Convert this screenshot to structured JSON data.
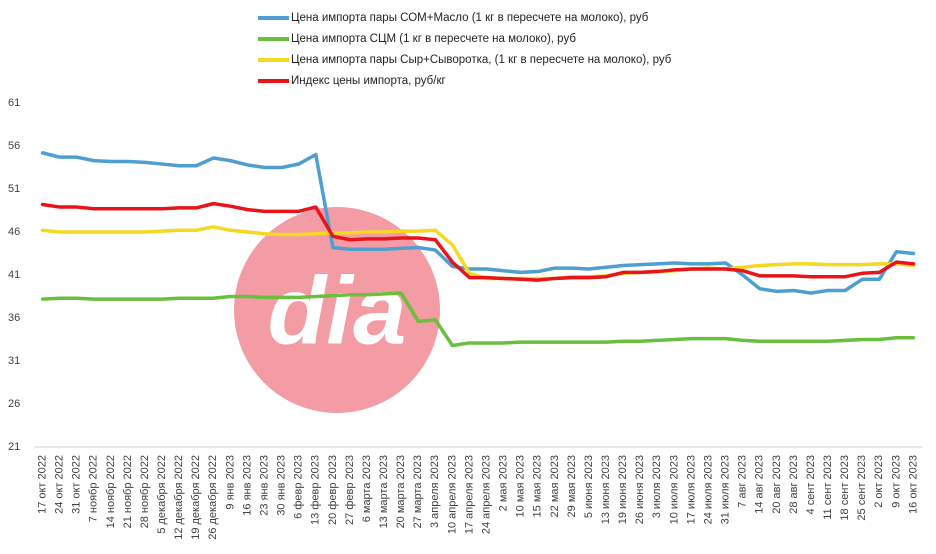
{
  "chart_data": {
    "type": "line",
    "watermark": "dia",
    "categories": [
      "17 окт 2022",
      "24 окт 2022",
      "31 окт 2022",
      "7 ноябр 2022",
      "14 ноябр 2022",
      "21 ноябр 2022",
      "28 ноябр 2022",
      "5 декабря 2022",
      "12 декабря 2022",
      "19 декабря 2022",
      "26 декабря 2022",
      "9 янв 2023",
      "16 янв 2023",
      "23 янв 2023",
      "30 янв 2023",
      "6 февр 2023",
      "13 февр 2023",
      "20 февр 2023",
      "27 февр 2023",
      "6 марта 2023",
      "13 марта 2023",
      "20 марта 2023",
      "27 марта 2023",
      "3 апреля 2023",
      "10 апреля 2023",
      "17 апреля 2023",
      "24 апреля 2023",
      "2 мая 2023",
      "10 мая 2023",
      "15 мая 2023",
      "22 мая 2023",
      "29 мая 2023",
      "5 июня 2023",
      "13 июня 2023",
      "19 июня 2023",
      "26 июня 2023",
      "3 июля 2023",
      "10 июля 2023",
      "17 июля 2023",
      "24 июля 2023",
      "31 июля 2023",
      "7 авг 2023",
      "14 авг 2023",
      "20 авг 2023",
      "28 авг 2023",
      "4 сент 2023",
      "11 сент 2023",
      "18 сент 2023",
      "25 сент 2023",
      "2 окт 2023",
      "9 окт 2023",
      "16 окт 2023"
    ],
    "series": [
      {
        "name": "Цена импорта пары СОМ+Масло  (1 кг в пересчете на молоко), руб",
        "color": "#4f9ed1",
        "values": [
          55.2,
          54.7,
          54.7,
          54.3,
          54.2,
          54.2,
          54.1,
          53.9,
          53.7,
          53.7,
          54.6,
          54.3,
          53.8,
          53.5,
          53.5,
          53.9,
          55,
          44.2,
          44,
          44,
          44,
          44.1,
          44.2,
          43.9,
          42,
          41.7,
          41.7,
          41.5,
          41.3,
          41.4,
          41.8,
          41.8,
          41.7,
          41.9,
          42.1,
          42.2,
          42.3,
          42.4,
          42.3,
          42.3,
          42.4,
          41,
          39.4,
          39.1,
          39.2,
          38.9,
          39.2,
          39.2,
          40.5,
          40.5,
          43.7,
          43.5
        ]
      },
      {
        "name": "Цена импорта СЦМ (1 кг в пересчете на молоко), руб",
        "color": "#6abf3c",
        "values": [
          38.2,
          38.3,
          38.3,
          38.2,
          38.2,
          38.2,
          38.2,
          38.2,
          38.3,
          38.3,
          38.3,
          38.5,
          38.5,
          38.4,
          38.4,
          38.4,
          38.5,
          38.6,
          38.7,
          38.7,
          38.8,
          38.9,
          35.6,
          35.8,
          32.8,
          33.1,
          33.1,
          33.1,
          33.2,
          33.2,
          33.2,
          33.2,
          33.2,
          33.2,
          33.3,
          33.3,
          33.4,
          33.5,
          33.6,
          33.6,
          33.6,
          33.4,
          33.3,
          33.3,
          33.3,
          33.3,
          33.3,
          33.4,
          33.5,
          33.5,
          33.7,
          33.7
        ]
      },
      {
        "name": "Цена импорта пары Сыр+Сыворотка, (1 кг в пересчете на молоко), руб",
        "color": "#f5d820",
        "values": [
          46.2,
          46,
          46,
          46,
          46,
          46,
          46,
          46.1,
          46.2,
          46.2,
          46.6,
          46.2,
          46,
          45.8,
          45.7,
          45.7,
          45.8,
          45.9,
          45.9,
          46,
          46,
          46.1,
          46.1,
          46.2,
          44.5,
          41.2,
          40.6,
          40.6,
          40.6,
          40.6,
          40.6,
          40.8,
          40.8,
          40.9,
          41.2,
          41.3,
          41.4,
          41.5,
          41.7,
          41.8,
          41.7,
          41.9,
          42.1,
          42.2,
          42.3,
          42.3,
          42.2,
          42.2,
          42.2,
          42.3,
          42.3,
          42.1
        ]
      },
      {
        "name": "Индекс цены импорта, руб/кг",
        "color": "#e8141a",
        "values": [
          49.2,
          48.9,
          48.9,
          48.7,
          48.7,
          48.7,
          48.7,
          48.7,
          48.8,
          48.8,
          49.3,
          49,
          48.6,
          48.4,
          48.4,
          48.4,
          48.9,
          45.5,
          45.1,
          45.2,
          45.2,
          45.3,
          45.3,
          45.1,
          42.5,
          40.7,
          40.7,
          40.6,
          40.5,
          40.4,
          40.6,
          40.7,
          40.7,
          40.8,
          41.3,
          41.3,
          41.4,
          41.6,
          41.7,
          41.7,
          41.7,
          41.5,
          40.9,
          40.9,
          40.9,
          40.8,
          40.8,
          40.8,
          41.2,
          41.3,
          42.5,
          42.3
        ]
      }
    ],
    "ylim": [
      21,
      61
    ],
    "yticks": [
      21,
      26,
      31,
      36,
      41,
      46,
      51,
      56,
      61
    ],
    "grid": false,
    "legend": "top"
  }
}
